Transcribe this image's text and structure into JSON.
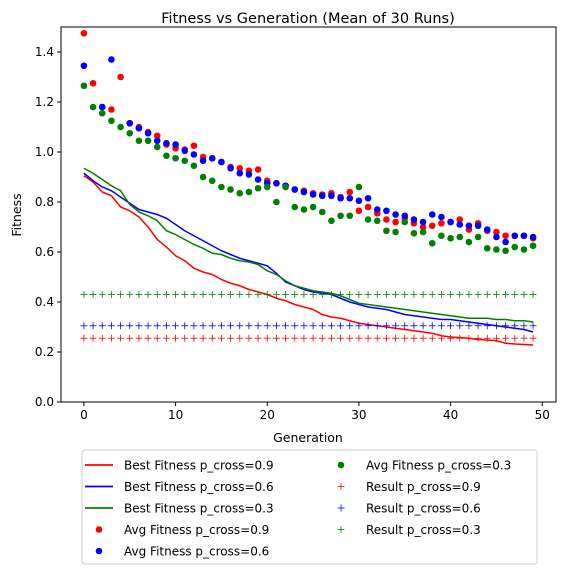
{
  "chart_data": {
    "type": "line",
    "title": "Fitness vs Generation (Mean of 30 Runs)",
    "xlabel": "Generation",
    "ylabel": "Fitness",
    "xlim": [
      -2.5,
      51.5
    ],
    "ylim": [
      0.0,
      1.5
    ],
    "xticks": [
      0,
      10,
      20,
      30,
      40,
      50
    ],
    "yticks": [
      0.0,
      0.2,
      0.4,
      0.6,
      0.8,
      1.0,
      1.2,
      1.4
    ],
    "grid": false,
    "legend_position": "below",
    "x": [
      0,
      1,
      2,
      3,
      4,
      5,
      6,
      7,
      8,
      9,
      10,
      11,
      12,
      13,
      14,
      15,
      16,
      17,
      18,
      19,
      20,
      21,
      22,
      23,
      24,
      25,
      26,
      27,
      28,
      29,
      30,
      31,
      32,
      33,
      34,
      35,
      36,
      37,
      38,
      39,
      40,
      41,
      42,
      43,
      44,
      45,
      46,
      47,
      48,
      49
    ],
    "series": [
      {
        "name": "Best Fitness p_cross=0.9",
        "kind": "line",
        "color": "#ff0000",
        "values": [
          0.905,
          0.88,
          0.84,
          0.825,
          0.78,
          0.765,
          0.74,
          0.7,
          0.65,
          0.62,
          0.585,
          0.565,
          0.535,
          0.52,
          0.51,
          0.49,
          0.475,
          0.465,
          0.45,
          0.44,
          0.43,
          0.415,
          0.405,
          0.39,
          0.38,
          0.37,
          0.35,
          0.34,
          0.335,
          0.325,
          0.315,
          0.31,
          0.305,
          0.3,
          0.295,
          0.29,
          0.285,
          0.28,
          0.275,
          0.265,
          0.26,
          0.258,
          0.255,
          0.25,
          0.248,
          0.245,
          0.235,
          0.232,
          0.23,
          0.228
        ]
      },
      {
        "name": "Best Fitness p_cross=0.6",
        "kind": "line",
        "color": "#0000ff",
        "values": [
          0.915,
          0.885,
          0.86,
          0.845,
          0.82,
          0.795,
          0.77,
          0.76,
          0.75,
          0.735,
          0.71,
          0.685,
          0.665,
          0.645,
          0.625,
          0.605,
          0.59,
          0.575,
          0.565,
          0.555,
          0.545,
          0.515,
          0.48,
          0.465,
          0.45,
          0.44,
          0.435,
          0.43,
          0.415,
          0.4,
          0.39,
          0.38,
          0.375,
          0.37,
          0.36,
          0.35,
          0.345,
          0.34,
          0.335,
          0.33,
          0.33,
          0.325,
          0.32,
          0.315,
          0.31,
          0.305,
          0.3,
          0.295,
          0.29,
          0.28
        ]
      },
      {
        "name": "Best Fitness p_cross=0.3",
        "kind": "line",
        "color": "#008000",
        "values": [
          0.935,
          0.915,
          0.89,
          0.865,
          0.845,
          0.79,
          0.76,
          0.745,
          0.725,
          0.685,
          0.67,
          0.65,
          0.63,
          0.615,
          0.595,
          0.59,
          0.575,
          0.565,
          0.56,
          0.55,
          0.525,
          0.51,
          0.485,
          0.465,
          0.455,
          0.445,
          0.44,
          0.435,
          0.425,
          0.41,
          0.395,
          0.39,
          0.385,
          0.38,
          0.375,
          0.37,
          0.365,
          0.36,
          0.355,
          0.35,
          0.345,
          0.34,
          0.335,
          0.335,
          0.335,
          0.33,
          0.33,
          0.325,
          0.325,
          0.32
        ]
      },
      {
        "name": "Avg Fitness p_cross=0.9",
        "kind": "scatter",
        "color": "#ff0000",
        "values": [
          1.475,
          1.275,
          1.18,
          1.17,
          1.3,
          1.115,
          1.1,
          1.08,
          1.065,
          1.03,
          1.015,
          1.01,
          1.025,
          0.98,
          0.975,
          0.96,
          0.94,
          0.935,
          0.925,
          0.93,
          0.885,
          0.875,
          0.865,
          0.85,
          0.845,
          0.835,
          0.83,
          0.835,
          0.82,
          0.84,
          0.765,
          0.78,
          0.755,
          0.73,
          0.72,
          0.735,
          0.715,
          0.7,
          0.705,
          0.715,
          0.72,
          0.73,
          0.69,
          0.715,
          0.685,
          0.68,
          0.665,
          0.665,
          0.665,
          0.655
        ]
      },
      {
        "name": "Avg Fitness p_cross=0.6",
        "kind": "scatter",
        "color": "#0000ff",
        "values": [
          1.345,
          null,
          1.18,
          1.37,
          null,
          1.115,
          1.095,
          1.075,
          1.045,
          1.035,
          1.03,
          1.005,
          0.99,
          0.965,
          0.975,
          0.96,
          0.935,
          0.915,
          0.91,
          0.89,
          0.875,
          0.875,
          0.865,
          0.85,
          0.84,
          0.83,
          0.825,
          0.825,
          0.815,
          0.815,
          0.805,
          0.815,
          0.77,
          0.765,
          0.75,
          0.745,
          0.73,
          0.72,
          0.75,
          0.74,
          0.72,
          0.71,
          0.705,
          0.705,
          0.69,
          0.66,
          0.64,
          0.665,
          0.665,
          0.66
        ]
      },
      {
        "name": "Avg Fitness p_cross=0.3",
        "kind": "scatter",
        "color": "#008000",
        "values": [
          1.265,
          1.18,
          1.155,
          1.125,
          1.1,
          1.075,
          1.045,
          1.045,
          1.02,
          0.985,
          0.975,
          0.965,
          0.945,
          0.9,
          0.885,
          0.86,
          0.85,
          0.835,
          0.84,
          0.855,
          0.86,
          0.8,
          0.86,
          0.78,
          0.77,
          0.78,
          0.76,
          0.725,
          0.745,
          0.745,
          0.86,
          0.73,
          0.725,
          0.685,
          0.68,
          0.72,
          0.675,
          0.68,
          0.635,
          0.665,
          0.655,
          0.66,
          0.64,
          0.66,
          0.615,
          0.61,
          0.605,
          0.62,
          0.61,
          0.625
        ]
      },
      {
        "name": "Result p_cross=0.9",
        "kind": "plus",
        "color": "#ff0000",
        "constant": 0.255
      },
      {
        "name": "Result p_cross=0.6",
        "kind": "plus",
        "color": "#0000ff",
        "constant": 0.305
      },
      {
        "name": "Result p_cross=0.3",
        "kind": "plus",
        "color": "#008000",
        "constant": 0.43
      }
    ]
  }
}
